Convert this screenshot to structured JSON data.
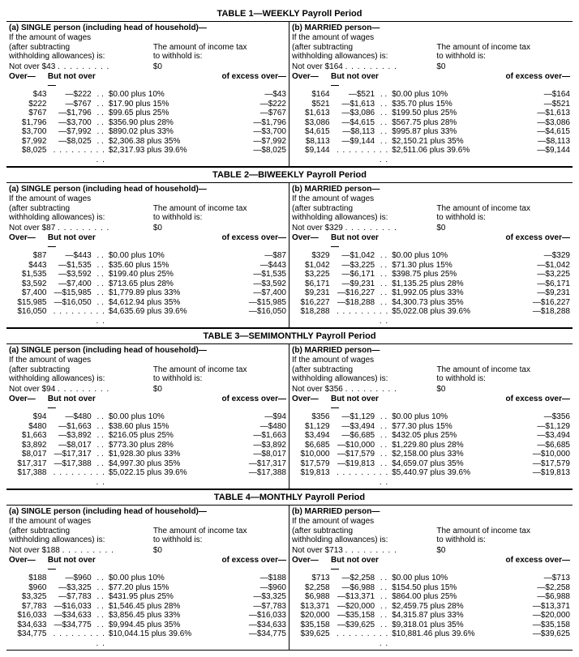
{
  "tables": [
    {
      "title": "TABLE 1—WEEKLY Payroll Period",
      "single": {
        "notover": "$43",
        "rows": [
          [
            "$43",
            "—$222",
            "$0.00 plus 10%",
            "—$43"
          ],
          [
            "$222",
            "—$767",
            "$17.90 plus 15%",
            "—$222"
          ],
          [
            "$767",
            "—$1,796",
            "$99.65 plus 25%",
            "—$767"
          ],
          [
            "$1,796",
            "—$3,700",
            "$356.90 plus 28%",
            "—$1,796"
          ],
          [
            "$3,700",
            "—$7,992",
            "$890.02 plus 33%",
            "—$3,700"
          ],
          [
            "$7,992",
            "—$8,025",
            "$2,306.38 plus 35%",
            "—$7,992"
          ],
          [
            "$8,025",
            "",
            "$2,317.93 plus 39.6%",
            "—$8,025"
          ]
        ]
      },
      "married": {
        "notover": "$164",
        "rows": [
          [
            "$164",
            "—$521",
            "$0.00 plus 10%",
            "—$164"
          ],
          [
            "$521",
            "—$1,613",
            "$35.70 plus 15%",
            "—$521"
          ],
          [
            "$1,613",
            "—$3,086",
            "$199.50 plus 25%",
            "—$1,613"
          ],
          [
            "$3,086",
            "—$4,615",
            "$567.75 plus 28%",
            "—$3,086"
          ],
          [
            "$4,615",
            "—$8,113",
            "$995.87 plus 33%",
            "—$4,615"
          ],
          [
            "$8,113",
            "—$9,144",
            "$2,150.21 plus 35%",
            "—$8,113"
          ],
          [
            "$9,144",
            "",
            "$2,511.06 plus 39.6%",
            "—$9,144"
          ]
        ]
      }
    },
    {
      "title": "TABLE 2—BIWEEKLY Payroll Period",
      "single": {
        "notover": "$87",
        "rows": [
          [
            "$87",
            "—$443",
            "$0.00 plus 10%",
            "—$87"
          ],
          [
            "$443",
            "—$1,535",
            "$35.60 plus 15%",
            "—$443"
          ],
          [
            "$1,535",
            "—$3,592",
            "$199.40 plus 25%",
            "—$1,535"
          ],
          [
            "$3,592",
            "—$7,400",
            "$713.65 plus 28%",
            "—$3,592"
          ],
          [
            "$7,400",
            "—$15,985",
            "$1,779.89 plus 33%",
            "—$7,400"
          ],
          [
            "$15,985",
            "—$16,050",
            "$4,612.94 plus 35%",
            "—$15,985"
          ],
          [
            "$16,050",
            "",
            "$4,635.69 plus 39.6%",
            "—$16,050"
          ]
        ]
      },
      "married": {
        "notover": "$329",
        "rows": [
          [
            "$329",
            "—$1,042",
            "$0.00 plus 10%",
            "—$329"
          ],
          [
            "$1,042",
            "—$3,225",
            "$71.30 plus 15%",
            "—$1,042"
          ],
          [
            "$3,225",
            "—$6,171",
            "$398.75 plus 25%",
            "—$3,225"
          ],
          [
            "$6,171",
            "—$9,231",
            "$1,135.25 plus 28%",
            "—$6,171"
          ],
          [
            "$9,231",
            "—$16,227",
            "$1,992.05 plus 33%",
            "—$9,231"
          ],
          [
            "$16,227",
            "—$18,288",
            "$4,300.73 plus 35%",
            "—$16,227"
          ],
          [
            "$18,288",
            "",
            "$5,022.08 plus 39.6%",
            "—$18,288"
          ]
        ]
      }
    },
    {
      "title": "TABLE 3—SEMIMONTHLY Payroll Period",
      "single": {
        "notover": "$94",
        "rows": [
          [
            "$94",
            "—$480",
            "$0.00 plus 10%",
            "—$94"
          ],
          [
            "$480",
            "—$1,663",
            "$38.60 plus 15%",
            "—$480"
          ],
          [
            "$1,663",
            "—$3,892",
            "$216.05 plus 25%",
            "—$1,663"
          ],
          [
            "$3,892",
            "—$8,017",
            "$773.30 plus 28%",
            "—$3,892"
          ],
          [
            "$8,017",
            "—$17,317",
            "$1,928.30 plus 33%",
            "—$8,017"
          ],
          [
            "$17,317",
            "—$17,388",
            "$4,997.30 plus 35%",
            "—$17,317"
          ],
          [
            "$17,388",
            "",
            "$5,022.15 plus 39.6%",
            "—$17,388"
          ]
        ]
      },
      "married": {
        "notover": "$356",
        "rows": [
          [
            "$356",
            "—$1,129",
            "$0.00 plus 10%",
            "—$356"
          ],
          [
            "$1,129",
            "—$3,494",
            "$77.30 plus 15%",
            "—$1,129"
          ],
          [
            "$3,494",
            "—$6,685",
            "$432.05 plus 25%",
            "—$3,494"
          ],
          [
            "$6,685",
            "—$10,000",
            "$1,229.80 plus 28%",
            "—$6,685"
          ],
          [
            "$10,000",
            "—$17,579",
            "$2,158.00 plus 33%",
            "—$10,000"
          ],
          [
            "$17,579",
            "—$19,813",
            "$4,659.07 plus 35%",
            "—$17,579"
          ],
          [
            "$19,813",
            "",
            "$5,440.97 plus 39.6%",
            "—$19,813"
          ]
        ]
      }
    },
    {
      "title": "TABLE 4—MONTHLY Payroll Period",
      "single": {
        "notover": "$188",
        "rows": [
          [
            "$188",
            "—$960",
            "$0.00 plus 10%",
            "—$188"
          ],
          [
            "$960",
            "—$3,325",
            "$77.20 plus 15%",
            "—$960"
          ],
          [
            "$3,325",
            "—$7,783",
            "$431.95 plus 25%",
            "—$3,325"
          ],
          [
            "$7,783",
            "—$16,033",
            "$1,546.45 plus 28%",
            "—$7,783"
          ],
          [
            "$16,033",
            "—$34,633",
            "$3,856.45 plus 33%",
            "—$16,033"
          ],
          [
            "$34,633",
            "—$34,775",
            "$9,994.45 plus 35%",
            "—$34,633"
          ],
          [
            "$34,775",
            "",
            "$10,044.15 plus 39.6%",
            "—$34,775"
          ]
        ]
      },
      "married": {
        "notover": "$713",
        "rows": [
          [
            "$713",
            "—$2,258",
            "$0.00 plus 10%",
            "—$713"
          ],
          [
            "$2,258",
            "—$6,988",
            "$154.50 plus 15%",
            "—$2,258"
          ],
          [
            "$6,988",
            "—$13,371",
            "$864.00 plus 25%",
            "—$6,988"
          ],
          [
            "$13,371",
            "—$20,000",
            "$2,459.75 plus 28%",
            "—$13,371"
          ],
          [
            "$20,000",
            "—$35,158",
            "$4,315.87 plus 33%",
            "—$20,000"
          ],
          [
            "$35,158",
            "—$39,625",
            "$9,318.01 plus 35%",
            "—$35,158"
          ],
          [
            "$39,625",
            "",
            "$10,881.46 plus 39.6%",
            "—$39,625"
          ]
        ]
      }
    }
  ],
  "labels": {
    "single_title": "(a) SINGLE person (including head of household)—",
    "married_title": "(b) MARRIED person—",
    "intro1": "If the amount of wages",
    "intro2": "(after subtracting",
    "intro3": "withholding allowances) is:",
    "intro_r1": "The amount of income tax",
    "intro_r2": "to withhold is:",
    "notover_pre": "Not over ",
    "zero": "$0",
    "over": "Over—",
    "but_not_over": "But not over—",
    "excess": "of excess over—"
  }
}
